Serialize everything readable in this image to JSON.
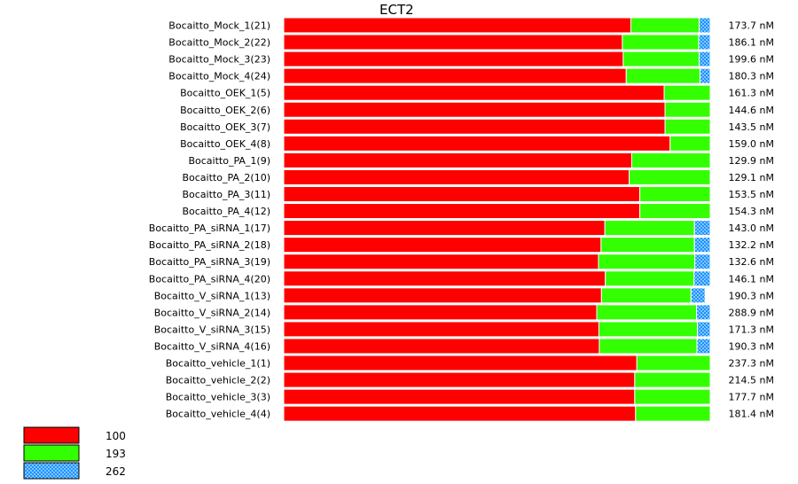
{
  "chart_data": {
    "type": "bar",
    "orientation": "horizontal-stacked-100",
    "title": "ECT2",
    "categories": [
      "Bocaitto_Mock_1(21)",
      "Bocaitto_Mock_2(22)",
      "Bocaitto_Mock_3(23)",
      "Bocaitto_Mock_4(24)",
      "Bocaitto_OEK_1(5)",
      "Bocaitto_OEK_2(6)",
      "Bocaitto_OEK_3(7)",
      "Bocaitto_OEK_4(8)",
      "Bocaitto_PA_1(9)",
      "Bocaitto_PA_2(10)",
      "Bocaitto_PA_3(11)",
      "Bocaitto_PA_4(12)",
      "Bocaitto_PA_siRNA_1(17)",
      "Bocaitto_PA_siRNA_2(18)",
      "Bocaitto_PA_siRNA_3(19)",
      "Bocaitto_PA_siRNA_4(20)",
      "Bocaitto_V_siRNA_1(13)",
      "Bocaitto_V_siRNA_2(14)",
      "Bocaitto_V_siRNA_3(15)",
      "Bocaitto_V_siRNA_4(16)",
      "Bocaitto_vehicle_1(1)",
      "Bocaitto_vehicle_2(2)",
      "Bocaitto_vehicle_3(3)",
      "Bocaitto_vehicle_4(4)"
    ],
    "concentrations": [
      "173.7 nM",
      "186.1 nM",
      "199.6 nM",
      "180.3 nM",
      "161.3 nM",
      "144.6 nM",
      "143.5 nM",
      "159.0 nM",
      "129.9 nM",
      "129.1 nM",
      "153.5 nM",
      "154.3 nM",
      "143.0 nM",
      "132.2 nM",
      "132.6 nM",
      "146.1 nM",
      "190.3 nM",
      "288.9 nM",
      "171.3 nM",
      "190.3 nM",
      "237.3 nM",
      "214.5 nM",
      "177.7 nM",
      "181.4 nM"
    ],
    "series": [
      {
        "name": "100",
        "color": "#ff0000",
        "values": [
          81.4,
          79.4,
          79.6,
          80.3,
          89.2,
          89.4,
          89.4,
          90.6,
          81.6,
          81.0,
          83.5,
          83.5,
          75.3,
          74.4,
          73.8,
          75.4,
          74.5,
          73.4,
          73.9,
          74.0,
          82.8,
          82.3,
          82.3,
          82.5
        ]
      },
      {
        "name": "193",
        "color": "#33ff00",
        "values": [
          16.0,
          17.9,
          17.8,
          17.3,
          10.8,
          10.6,
          10.6,
          9.4,
          18.4,
          19.0,
          16.5,
          16.5,
          21.0,
          21.9,
          22.6,
          20.8,
          21.0,
          23.4,
          23.1,
          22.9,
          17.2,
          17.7,
          17.7,
          17.5
        ]
      },
      {
        "name": "262",
        "color": "#1e90ff",
        "values": [
          2.6,
          2.7,
          2.6,
          2.4,
          0,
          0,
          0,
          0,
          0,
          0,
          0,
          0,
          3.7,
          3.7,
          3.6,
          3.8,
          3.3,
          3.2,
          3.0,
          3.1,
          0,
          0,
          0,
          0
        ]
      }
    ],
    "xlim": [
      0,
      100
    ]
  }
}
